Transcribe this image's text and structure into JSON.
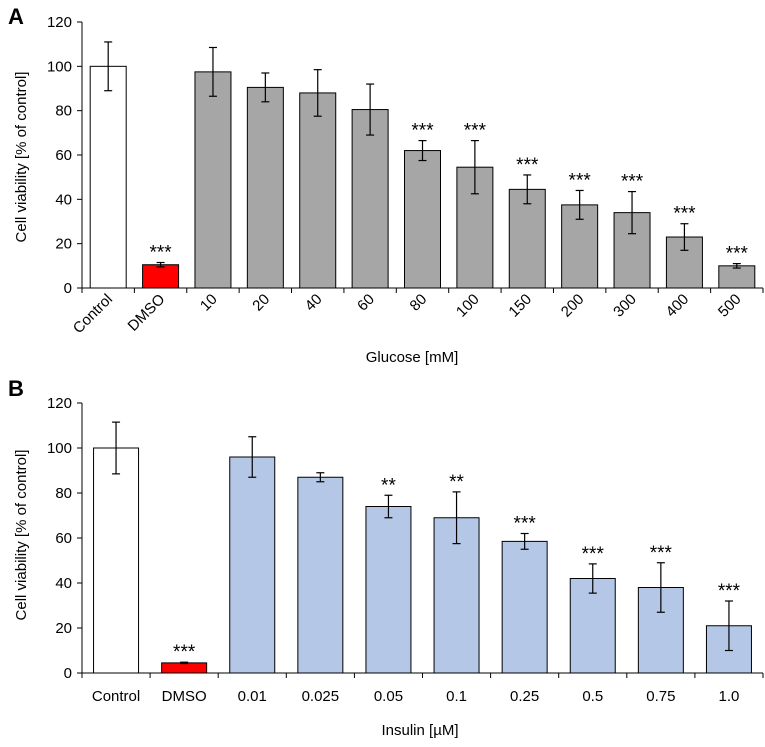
{
  "chart_data": [
    {
      "panel": "A",
      "type": "bar",
      "xlabel": "Glucose [mM]",
      "ylabel": "Cell viability [% of control]",
      "ylim": [
        0,
        120
      ],
      "yticks": [
        "0",
        "20",
        "40",
        "60",
        "80",
        "100",
        "120"
      ],
      "grid": false,
      "categories": [
        "Control",
        "DMSO",
        "10",
        "20",
        "40",
        "60",
        "80",
        "100",
        "150",
        "200",
        "300",
        "400",
        "500"
      ],
      "values": [
        100,
        10.5,
        97.5,
        90.5,
        88,
        80.5,
        62,
        54.5,
        44.5,
        37.5,
        34,
        23,
        10
      ],
      "errors": [
        11,
        1,
        11,
        6.5,
        10.5,
        11.5,
        4.5,
        12,
        6.5,
        6.5,
        9.5,
        6,
        1
      ],
      "significance": [
        "",
        "***",
        "",
        "",
        "",
        "",
        "***",
        "***",
        "***",
        "***",
        "***",
        "***",
        "***"
      ],
      "colors": [
        "#ffffff",
        "#ff0000",
        "#a6a6a6",
        "#a6a6a6",
        "#a6a6a6",
        "#a6a6a6",
        "#a6a6a6",
        "#a6a6a6",
        "#a6a6a6",
        "#a6a6a6",
        "#a6a6a6",
        "#a6a6a6",
        "#a6a6a6"
      ],
      "category_labels_rotated": true
    },
    {
      "panel": "B",
      "type": "bar",
      "xlabel": "Insulin [µM]",
      "ylabel": "Cell viability [% of control]",
      "ylim": [
        0,
        120
      ],
      "yticks": [
        "0",
        "20",
        "40",
        "60",
        "80",
        "100",
        "120"
      ],
      "grid": false,
      "categories": [
        "Control",
        "DMSO",
        "0.01",
        "0.025",
        "0.05",
        "0.1",
        "0.25",
        "0.5",
        "0.75",
        "1.0"
      ],
      "values": [
        100,
        4.5,
        96,
        87,
        74,
        69,
        58.5,
        42,
        38,
        21
      ],
      "errors": [
        11.5,
        0.3,
        9,
        2,
        5,
        11.5,
        3.5,
        6.5,
        11,
        11
      ],
      "significance": [
        "",
        "***",
        "",
        "",
        "**",
        "**",
        "***",
        "***",
        "***",
        "***"
      ],
      "colors": [
        "#ffffff",
        "#ff0000",
        "#b4c7e7",
        "#b4c7e7",
        "#b4c7e7",
        "#b4c7e7",
        "#b4c7e7",
        "#b4c7e7",
        "#b4c7e7",
        "#b4c7e7"
      ],
      "category_labels_rotated": false
    }
  ]
}
